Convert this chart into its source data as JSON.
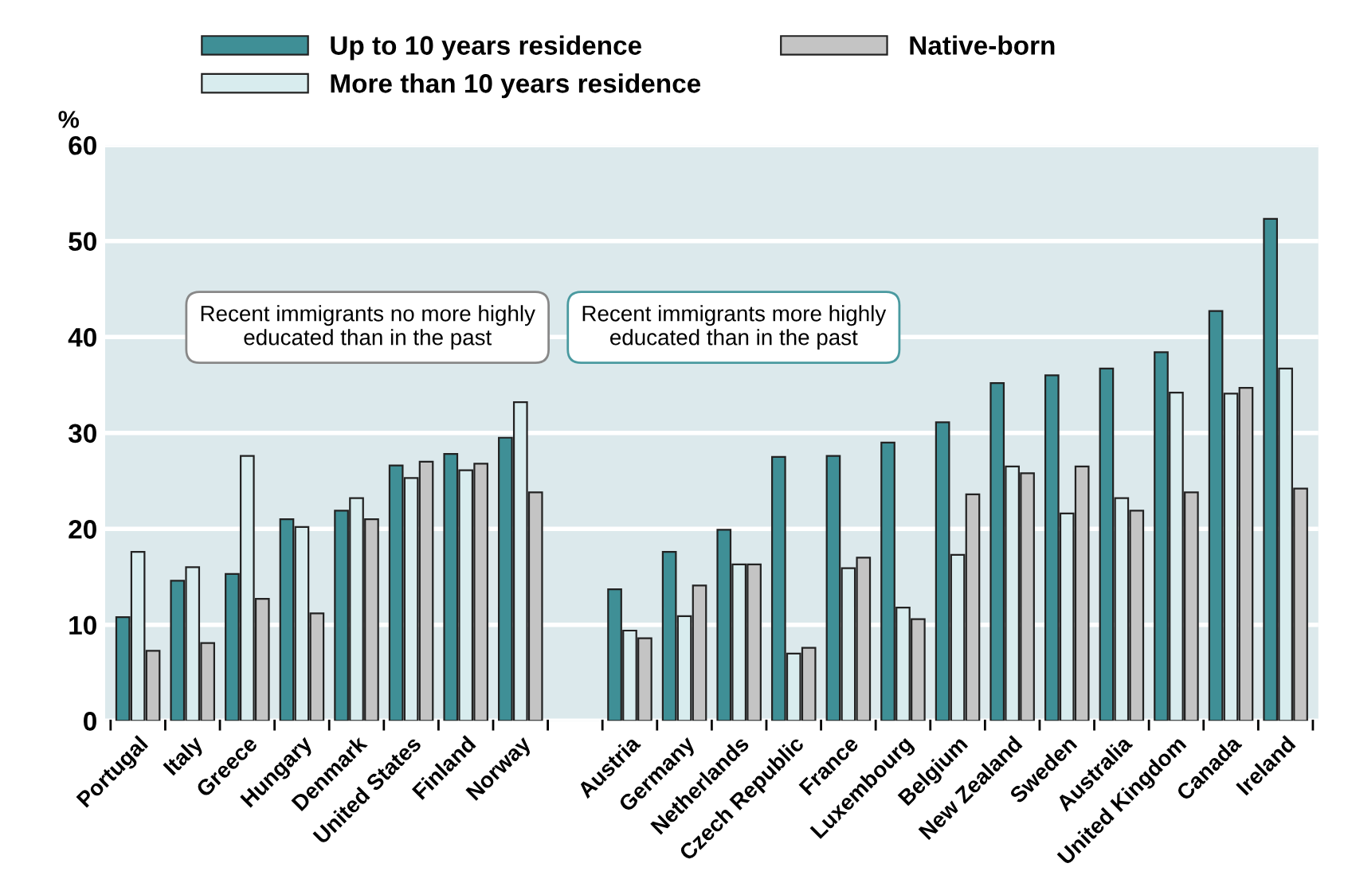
{
  "chart_data": {
    "type": "bar",
    "ylabel": "%",
    "categories": [
      "Portugal",
      "Italy",
      "Greece",
      "Hungary",
      "Denmark",
      "United States",
      "Finland",
      "Norway",
      null,
      "Austria",
      "Germany",
      "Netherlands",
      "Czech Republic",
      "France",
      "Luxembourg",
      "Belgium",
      "New Zealand",
      "Sweden",
      "Australia",
      "United Kingdom",
      "Canada",
      "Ireland"
    ],
    "series": [
      {
        "name": "Up to 10 years residence",
        "color": "#3f8f96",
        "values": [
          10.8,
          14.6,
          15.3,
          21.0,
          21.9,
          26.6,
          27.8,
          29.5,
          null,
          13.7,
          17.6,
          19.9,
          27.5,
          27.6,
          29.0,
          31.1,
          35.2,
          36.0,
          36.7,
          38.4,
          42.7,
          52.3
        ]
      },
      {
        "name": "More than 10 years residence",
        "color": "#d8ecee",
        "values": [
          17.6,
          16.0,
          27.6,
          20.2,
          23.2,
          25.3,
          26.1,
          33.2,
          null,
          9.4,
          10.9,
          16.3,
          7.0,
          15.9,
          11.8,
          17.3,
          26.5,
          21.6,
          23.2,
          34.2,
          34.1,
          36.7
        ]
      },
      {
        "name": "Native-born",
        "color": "#c4c4c4",
        "values": [
          7.3,
          8.1,
          12.7,
          11.2,
          21.0,
          27.0,
          26.8,
          23.8,
          null,
          8.6,
          14.1,
          16.3,
          7.6,
          17.0,
          10.6,
          23.6,
          25.8,
          26.5,
          21.9,
          23.8,
          34.7,
          24.2
        ]
      }
    ],
    "ylim": [
      0,
      60
    ],
    "yticks": [
      0,
      10,
      20,
      30,
      40,
      50,
      60
    ],
    "grid": "y",
    "legend": "top",
    "annotations": [
      "Recent immigrants no more highly educated than in the past",
      "Recent immigrants more highly educated than in the past"
    ]
  }
}
